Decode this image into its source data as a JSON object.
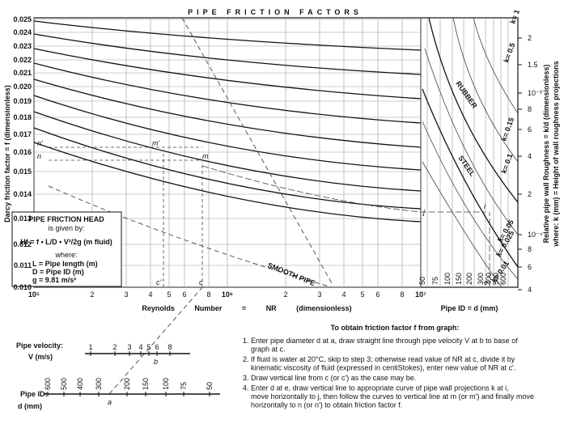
{
  "title": "PIPE FRICTION FACTORS",
  "y_axis_label": "Darcy friction factor = f (dimensionless)",
  "y_ticks": [
    "0.025",
    "0.024",
    "0.023",
    "0.022",
    "0.021",
    "0.020",
    "0.019",
    "0.018",
    "0.017",
    "0.016",
    "0.015",
    "0.014",
    "0.013",
    "0.012",
    "0.011",
    "0.010"
  ],
  "x_axis_label": "Reynolds Number = NR (dimensionless)",
  "x_ticks": [
    "10⁵",
    "2",
    "3",
    "4",
    "5",
    "6",
    "8",
    "10⁶",
    "2",
    "3",
    "4",
    "5",
    "6",
    "8",
    "10⁷"
  ],
  "pipe_id_axis_label": "Pipe ID = d (mm)",
  "pipe_id_ticks": [
    "50",
    "75",
    "100",
    "150",
    "200",
    "300",
    "400",
    "500",
    "600"
  ],
  "roughness_axis_label": "Relative pipe wall Roughness = k/d (dimensionless)",
  "roughness_axis_note": "where: k (mm) = Height of wall roughness projections",
  "roughness_ticks": [
    "2",
    "1.5",
    "10⁻³",
    "8",
    "6",
    "4",
    "2",
    "10⁻⁴",
    "8",
    "6",
    "4"
  ],
  "curve_labels": [
    "k= 1",
    "k= 0.5",
    "k= 0.15",
    "k= 0.1",
    "k= 0.05",
    "k= 0.025",
    "k= 0.01",
    "RUBBER",
    "STEEL",
    "SMOOTH PIPE"
  ],
  "points": [
    "n'",
    "n",
    "m'",
    "m",
    "c'",
    "c",
    "j",
    "i",
    "e"
  ],
  "friction_head": {
    "title": "PIPE FRICTION HEAD",
    "given": "is given by:",
    "formula": "Hf = f • L/D • V²/2g (m fluid)",
    "where": "where:",
    "lines": [
      "L = Pipe length (m)",
      "D = Pipe ID (m)",
      "g = 9.81 m/s²"
    ]
  },
  "velocity_scale": {
    "label": "Pipe velocity:",
    "unit": "V (m/s)",
    "ticks": [
      "1",
      "2",
      "3",
      "4",
      "5",
      "6",
      "8"
    ],
    "point": "b"
  },
  "diameter_scale": {
    "label": "Pipe ID:",
    "unit": "d (mm)",
    "ticks": [
      "600",
      "500",
      "400",
      "300",
      "200",
      "150",
      "100",
      "75",
      "50"
    ],
    "point": "a"
  },
  "instructions": {
    "title": "To obtain friction factor f from graph:",
    "items": [
      [
        "1.  Enter pipe diameter d at a, draw straight line through pipe velocity V at b to base of",
        "graph at c."
      ],
      [
        "2.  If fluid is water at 20°C, skip to step 3; otherwise read value of NR at c, divide it by",
        "kinematic viscosity of fluid (expressed in centiStokes), enter new value of NR at c'."
      ],
      [
        "3.  Draw vertical line from c (or c') as the case may be."
      ],
      [
        "4.  Enter d at e, draw vertical line to appropriate curve of pipe wall projections k at i,",
        "move horizontally to j, then follow the curves to vertical line at m (or m') and finally move",
        "horizontally to n (or n') to obtain friction factor f."
      ]
    ]
  }
}
